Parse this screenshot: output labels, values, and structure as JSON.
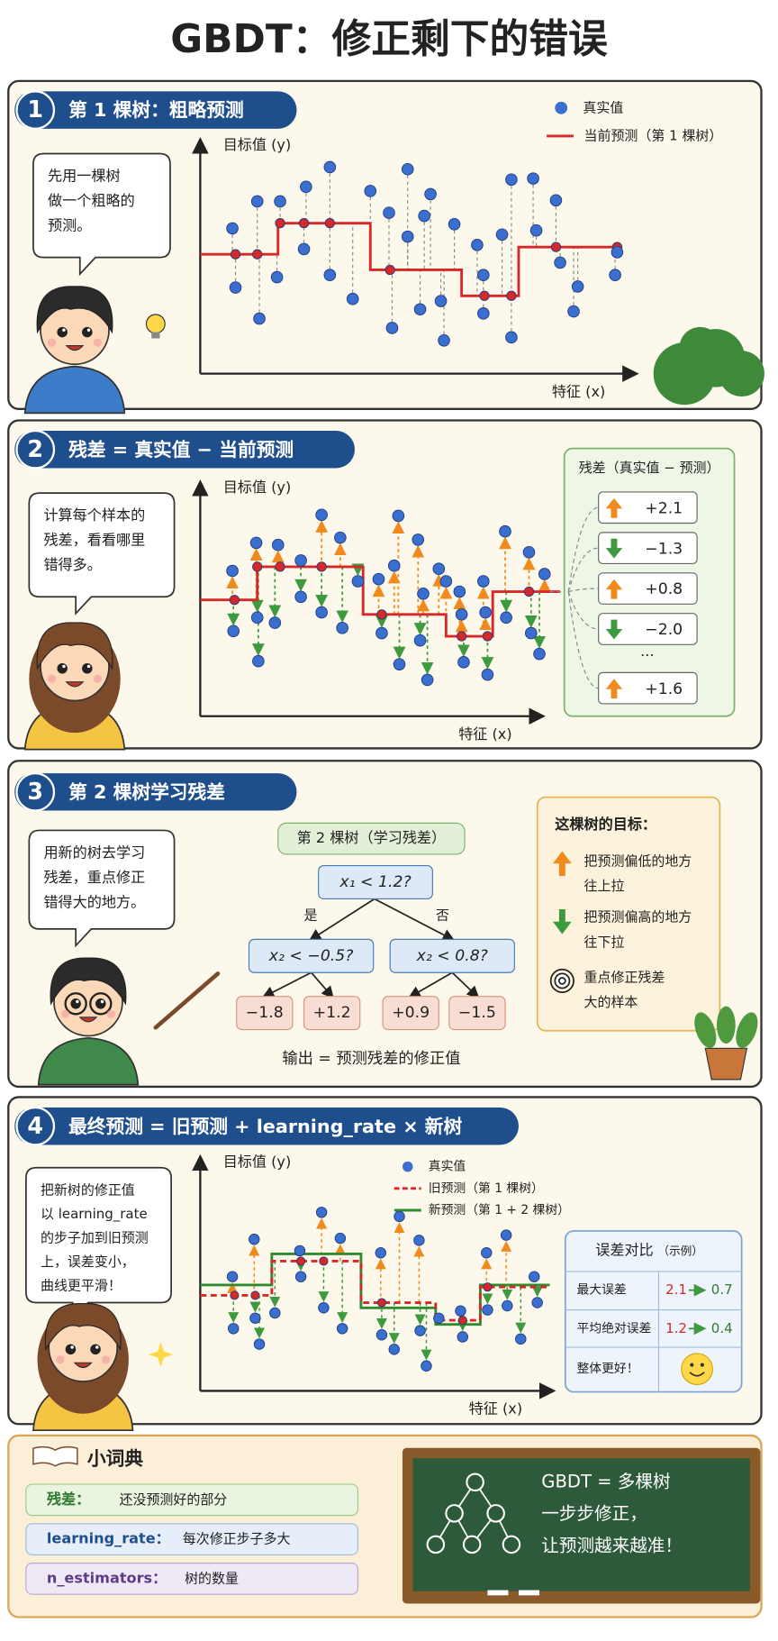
{
  "title": "GBDT：修正剩下的错误",
  "sections": [
    {
      "number": "1",
      "heading": "第 1 棵树：粗略预测",
      "speech": [
        "先用一棵树",
        "做一个粗略的",
        "预测。"
      ],
      "y_label": "目标值 (y)",
      "x_label": "特征 (x)",
      "legend": [
        "真实值",
        "当前预测（第 1 棵树）"
      ]
    },
    {
      "number": "2",
      "heading": "残差 = 真实值 − 当前预测",
      "speech": [
        "计算每个样本的",
        "残差，看看哪里",
        "错得多。"
      ],
      "y_label": "目标值 (y)",
      "x_label": "特征 (x)",
      "residual_box": {
        "title": "残差（真实值 − 预测）",
        "items": [
          "+2.1",
          "−1.3",
          "+0.8",
          "−2.0",
          "+1.6"
        ],
        "ellipsis": "···"
      }
    },
    {
      "number": "3",
      "heading": "第 2 棵树学习残差",
      "speech": [
        "用新的树去学习",
        "残差，重点修正",
        "错得大的地方。"
      ],
      "tree": {
        "title": "第 2 棵树（学习残差）",
        "root": "x₁ < 1.2?",
        "yes": "是",
        "no": "否",
        "left": "x₂ < −0.5?",
        "right": "x₂ < 0.8?",
        "leaves": [
          "−1.8",
          "+1.2",
          "+0.9",
          "−1.5"
        ],
        "caption": "输出 = 预测残差的修正值"
      },
      "goal": {
        "title": "这棵树的目标：",
        "items": [
          [
            "把预测偏低的地方",
            "往上拉"
          ],
          [
            "把预测偏高的地方",
            "往下拉"
          ],
          [
            "重点修正残差",
            "大的样本"
          ]
        ]
      }
    },
    {
      "number": "4",
      "heading": "最终预测 = 旧预测 + learning_rate × 新树",
      "speech": [
        "把新树的修正值",
        "以 learning_rate",
        "的步子加到旧预测",
        "上，误差变小，",
        "曲线更平滑！"
      ],
      "y_label": "目标值 (y)",
      "x_label": "特征 (x)",
      "legend": [
        "真实值",
        "旧预测（第 1 棵树）",
        "新预测（第 1 + 2 棵树）"
      ],
      "error_table": {
        "title": "误差对比",
        "subtitle": "（示例）",
        "rows": [
          {
            "label": "最大误差",
            "before": "2.1",
            "after": "0.7"
          },
          {
            "label": "平均绝对误差",
            "before": "1.2",
            "after": "0.4"
          }
        ],
        "summary": "整体更好！"
      }
    }
  ],
  "glossary": {
    "title": "小词典",
    "items": [
      {
        "term": "残差：",
        "desc": "还没预测好的部分"
      },
      {
        "term": "learning_rate：",
        "desc": "每次修正步子多大"
      },
      {
        "term": "n_estimators：",
        "desc": "树的数量"
      }
    ]
  },
  "board": [
    "GBDT = 多棵树",
    "一步步修正，",
    "让预测越来越准！"
  ]
}
